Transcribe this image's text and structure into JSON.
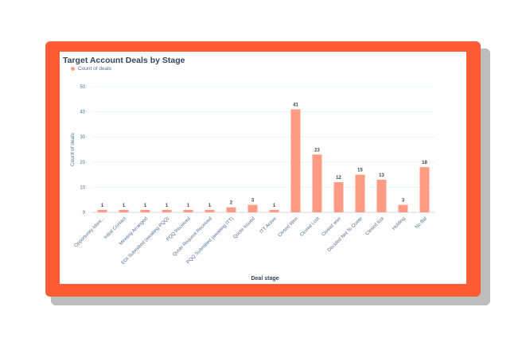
{
  "chart_data": {
    "type": "bar",
    "title": "Target Account Deals by Stage",
    "legend": [
      "Count of deals"
    ],
    "legend_position": "top-left",
    "xlabel": "Deal stage",
    "ylabel": "Count of deals",
    "ylim": [
      0,
      50
    ],
    "yticks": [
      0,
      10,
      20,
      30,
      40,
      50
    ],
    "grid": true,
    "bar_color": "#ff9c83",
    "categories": [
      "Opportunity Ident...",
      "Initial Contact",
      "Meeting Arranged",
      "EOI Submitted (awaiting PQQ)",
      "PQQ Received",
      "Quote Request Received",
      "PQQ Submitted (awaiting ITT)",
      "Quote Issued",
      "ITT Active",
      "Closed Won",
      "Closed Lost",
      "Closed won",
      "Decided Not To Quote",
      "Closed lost",
      "Holding",
      "No Bid"
    ],
    "series": [
      {
        "name": "Count of deals",
        "values": [
          1,
          1,
          1,
          1,
          1,
          1,
          2,
          3,
          1,
          41,
          23,
          12,
          15,
          13,
          3,
          18
        ]
      }
    ]
  },
  "colors": {
    "frame": "#ff5c35",
    "text": "#33475b",
    "muted": "#516f90",
    "grid": "#eaf0f6"
  }
}
